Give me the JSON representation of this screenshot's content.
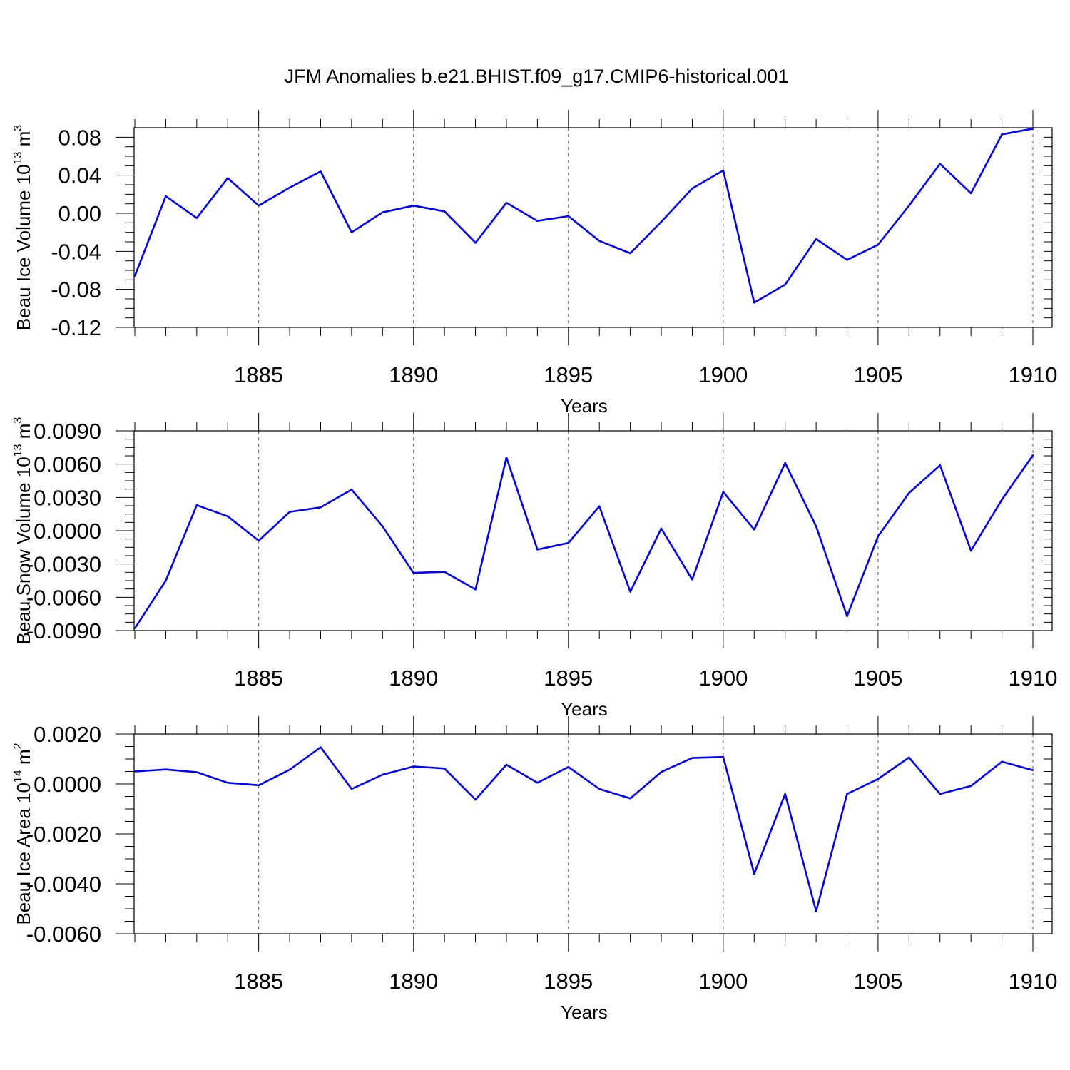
{
  "title": "JFM Anomalies b.e21.BHIST.f09_g17.CMIP6-historical.001",
  "colors": {
    "line": "#0000ff",
    "axis": "#000000",
    "grid": "#555555"
  },
  "chart_data": [
    {
      "type": "line",
      "xlabel": "Years",
      "ylabel": {
        "text": "Beau Ice Volume 10",
        "exp1": "13",
        "unit": " m",
        "exp2": "3"
      },
      "xlim": [
        1881,
        1910
      ],
      "ylim": [
        -0.12,
        0.09
      ],
      "xticks": [
        1885,
        1890,
        1895,
        1900,
        1905,
        1910
      ],
      "xtick_labels": [
        "1885",
        "1890",
        "1895",
        "1900",
        "1905",
        "1910"
      ],
      "yticks": [
        -0.12,
        -0.08,
        -0.04,
        0.0,
        0.04,
        0.08
      ],
      "ytick_labels": [
        "-0.12",
        "-0.08",
        "-0.04",
        "0.00",
        "0.04",
        "0.08"
      ],
      "grid": "vertical dashed at major x ticks",
      "x": [
        1881,
        1882,
        1883,
        1884,
        1885,
        1886,
        1887,
        1888,
        1889,
        1890,
        1891,
        1892,
        1893,
        1894,
        1895,
        1896,
        1897,
        1898,
        1899,
        1900,
        1901,
        1902,
        1903,
        1904,
        1905,
        1906,
        1907,
        1908,
        1909,
        1910
      ],
      "values": [
        -0.066,
        0.018,
        -0.005,
        0.037,
        0.008,
        0.027,
        0.044,
        -0.02,
        0.001,
        0.008,
        0.002,
        -0.031,
        0.011,
        -0.008,
        -0.003,
        -0.029,
        -0.042,
        -0.009,
        0.026,
        0.045,
        -0.094,
        -0.075,
        -0.027,
        -0.049,
        -0.033,
        0.008,
        0.052,
        0.021,
        0.083,
        0.089
      ]
    },
    {
      "type": "line",
      "xlabel": "Years",
      "ylabel": {
        "text": "Beau Snow Volume 10",
        "exp1": "13",
        "unit": " m",
        "exp2": "3"
      },
      "xlim": [
        1881,
        1910
      ],
      "ylim": [
        -0.009,
        0.009
      ],
      "xticks": [
        1885,
        1890,
        1895,
        1900,
        1905,
        1910
      ],
      "xtick_labels": [
        "1885",
        "1890",
        "1895",
        "1900",
        "1905",
        "1910"
      ],
      "yticks": [
        -0.009,
        -0.006,
        -0.003,
        0.0,
        0.003,
        0.006,
        0.009
      ],
      "ytick_labels": [
        "-0.0090",
        "-0.0060",
        "-0.0030",
        "0.0000",
        "0.0030",
        "0.0060",
        "0.0090"
      ],
      "grid": "vertical dashed at major x ticks",
      "x": [
        1881,
        1882,
        1883,
        1884,
        1885,
        1886,
        1887,
        1888,
        1889,
        1890,
        1891,
        1892,
        1893,
        1894,
        1895,
        1896,
        1897,
        1898,
        1899,
        1900,
        1901,
        1902,
        1903,
        1904,
        1905,
        1906,
        1907,
        1908,
        1909,
        1910
      ],
      "values": [
        -0.0088,
        -0.0045,
        0.0023,
        0.0013,
        -0.0009,
        0.0017,
        0.0021,
        0.0037,
        0.0004,
        -0.0038,
        -0.0037,
        -0.0053,
        0.0066,
        -0.0017,
        -0.0011,
        0.0022,
        -0.0055,
        0.0002,
        -0.0044,
        0.0035,
        0.0001,
        0.0061,
        0.0004,
        -0.0077,
        -0.0005,
        0.0034,
        0.0059,
        -0.0018,
        0.0028,
        0.0068
      ]
    },
    {
      "type": "line",
      "xlabel": "Years",
      "ylabel": {
        "text": "Beau Ice Area 10",
        "exp1": "14",
        "unit": " m",
        "exp2": "2"
      },
      "xlim": [
        1881,
        1910
      ],
      "ylim": [
        -0.006,
        0.002
      ],
      "xticks": [
        1885,
        1890,
        1895,
        1900,
        1905,
        1910
      ],
      "xtick_labels": [
        "1885",
        "1890",
        "1895",
        "1900",
        "1905",
        "1910"
      ],
      "yticks": [
        -0.006,
        -0.004,
        -0.002,
        0.0,
        0.002
      ],
      "ytick_labels": [
        "-0.0060",
        "-0.0040",
        "-0.0020",
        "0.0000",
        "0.0020"
      ],
      "grid": "vertical dashed at major x ticks",
      "x": [
        1881,
        1882,
        1883,
        1884,
        1885,
        1886,
        1887,
        1888,
        1889,
        1890,
        1891,
        1892,
        1893,
        1894,
        1895,
        1896,
        1897,
        1898,
        1899,
        1900,
        1901,
        1902,
        1903,
        1904,
        1905,
        1906,
        1907,
        1908,
        1909,
        1910
      ],
      "values": [
        0.0005,
        0.00058,
        0.00047,
        5e-05,
        -5e-05,
        0.00057,
        0.00147,
        -0.0002,
        0.00037,
        0.0007,
        0.00062,
        -0.00063,
        0.00077,
        5e-05,
        0.00068,
        -0.0002,
        -0.00058,
        0.00048,
        0.00104,
        0.00108,
        -0.0036,
        -0.0004,
        -0.0051,
        -0.0004,
        0.0002,
        0.00106,
        -0.0004,
        -8e-05,
        0.00089,
        0.00055
      ]
    }
  ]
}
